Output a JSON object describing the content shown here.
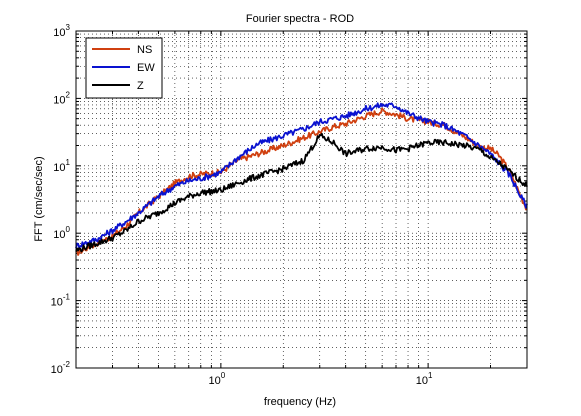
{
  "chart_data": {
    "type": "line",
    "title": "Fourier spectra - ROD",
    "xlabel": "frequency (Hz)",
    "ylabel": "FFT (cm/sec/sec)",
    "xscale": "log",
    "yscale": "log",
    "xlim": [
      0.2,
      30
    ],
    "ylim": [
      0.01,
      1000
    ],
    "grid": "on",
    "legend_position": "top-left",
    "x_ticks": [
      {
        "value": 1,
        "base": "10",
        "exp": "0"
      },
      {
        "value": 10,
        "base": "10",
        "exp": "1"
      }
    ],
    "y_ticks": [
      {
        "value": 0.01,
        "base": "10",
        "exp": "-2"
      },
      {
        "value": 0.1,
        "base": "10",
        "exp": "-1"
      },
      {
        "value": 1,
        "base": "10",
        "exp": "0"
      },
      {
        "value": 10,
        "base": "10",
        "exp": "1"
      },
      {
        "value": 100,
        "base": "10",
        "exp": "2"
      },
      {
        "value": 1000,
        "base": "10",
        "exp": "3"
      }
    ],
    "series": [
      {
        "name": "NS",
        "color": "#d04010",
        "x": [
          0.2,
          0.25,
          0.3,
          0.35,
          0.4,
          0.5,
          0.6,
          0.7,
          0.8,
          1.0,
          1.2,
          1.5,
          2.0,
          2.5,
          3.0,
          3.5,
          4.0,
          5.0,
          6.0,
          7.0,
          8.0,
          10.0,
          12.0,
          15.0,
          18.0,
          20.0,
          22.0,
          25.0,
          28.0,
          30.0
        ],
        "y": [
          0.5,
          0.7,
          0.9,
          1.3,
          2.0,
          3.5,
          5.5,
          7.0,
          7.5,
          8.0,
          12.0,
          15.0,
          20.0,
          26.0,
          32.0,
          38.0,
          42.0,
          55.0,
          65.0,
          58.0,
          50.0,
          45.0,
          40.0,
          27.0,
          19.0,
          18.0,
          14.0,
          8.0,
          3.5,
          2.3
        ]
      },
      {
        "name": "EW",
        "color": "#0a12d0",
        "x": [
          0.2,
          0.25,
          0.3,
          0.35,
          0.4,
          0.5,
          0.6,
          0.7,
          0.8,
          1.0,
          1.2,
          1.5,
          2.0,
          2.5,
          3.0,
          3.5,
          4.0,
          5.0,
          6.0,
          7.0,
          8.0,
          10.0,
          12.0,
          15.0,
          18.0,
          20.0,
          22.0,
          25.0,
          28.0,
          30.0
        ],
        "y": [
          0.65,
          0.8,
          1.1,
          1.5,
          2.0,
          3.5,
          5.0,
          6.0,
          6.5,
          8.0,
          13.0,
          21.0,
          28.0,
          35.0,
          45.0,
          50.0,
          55.0,
          70.0,
          80.0,
          78.0,
          60.0,
          45.0,
          40.0,
          28.0,
          19.0,
          15.0,
          11.0,
          7.0,
          3.5,
          2.5
        ]
      },
      {
        "name": "Z",
        "color": "#000000",
        "x": [
          0.2,
          0.25,
          0.3,
          0.35,
          0.4,
          0.5,
          0.6,
          0.7,
          0.8,
          1.0,
          1.2,
          1.5,
          2.0,
          2.5,
          3.0,
          3.5,
          4.0,
          5.0,
          6.0,
          7.0,
          8.0,
          10.0,
          12.0,
          15.0,
          18.0,
          20.0,
          22.0,
          25.0,
          28.0,
          30.0
        ],
        "y": [
          0.55,
          0.7,
          0.85,
          1.1,
          1.5,
          2.0,
          2.8,
          3.5,
          4.0,
          4.3,
          5.5,
          7.0,
          9.0,
          12.0,
          28.0,
          22.0,
          15.0,
          18.0,
          19.0,
          17.0,
          18.0,
          22.0,
          22.0,
          20.0,
          17.0,
          13.0,
          11.0,
          8.0,
          6.0,
          5.0
        ]
      }
    ]
  }
}
